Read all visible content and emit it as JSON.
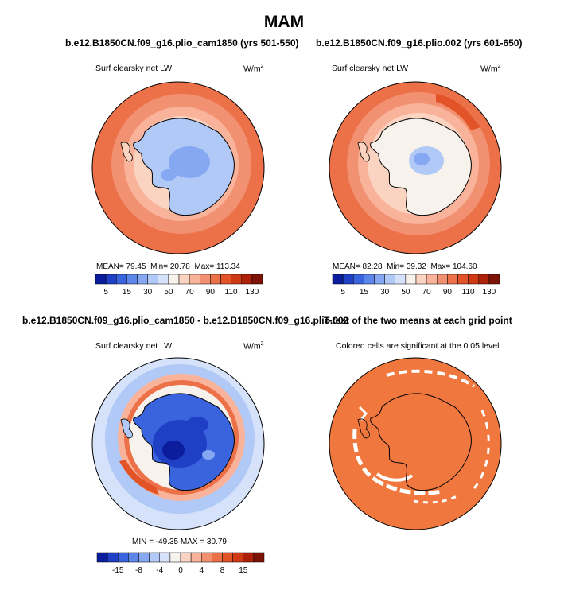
{
  "title": "MAM",
  "panels": {
    "p1": {
      "title": "b.e12.B1850CN.f09_g16.plio_cam1850 (yrs 501-550)",
      "left": "Surf clearsky net LW",
      "units_base": "W/m",
      "units_sup": "2",
      "stats": {
        "mean_label": "MEAN=",
        "mean": "79.45",
        "min_label": "Min=",
        "min": "20.78",
        "max_label": "Max=",
        "max": "113.34"
      }
    },
    "p2": {
      "title": "b.e12.B1850CN.f09_g16.plio.002 (yrs 601-650)",
      "left": "Surf clearsky net LW",
      "units_base": "W/m",
      "units_sup": "2",
      "stats": {
        "mean_label": "MEAN=",
        "mean": "82.28",
        "min_label": "Min=",
        "min": "39.32",
        "max_label": "Max=",
        "max": "104.60"
      }
    },
    "p3": {
      "title": "b.e12.B1850CN.f09_g16.plio_cam1850 - b.e12.B1850CN.f09_g16.plio.002",
      "left": "Surf clearsky net LW",
      "units_base": "W/m",
      "units_sup": "2",
      "stats": "MIN = -49.35  MAX =  30.79"
    },
    "p4": {
      "title": "T-test of the two means at each grid point",
      "left": "Colored cells are significant at the 0.05 level"
    }
  },
  "colorbars": {
    "abs": {
      "colors": [
        "#0b1d9c",
        "#1f3fc4",
        "#3a64dd",
        "#5c86ea",
        "#86a8f2",
        "#b0c9f7",
        "#d5e2fa",
        "#f8f2ec",
        "#fbd3c1",
        "#f8b39a",
        "#f29172",
        "#ec7048",
        "#e35328",
        "#cf3a15",
        "#ac2108",
        "#7d1206"
      ],
      "labels": [
        "5",
        "15",
        "30",
        "50",
        "70",
        "90",
        "110",
        "130"
      ]
    },
    "diff": {
      "colors": [
        "#0b1d9c",
        "#1f3fc4",
        "#3a64dd",
        "#5c86ea",
        "#86a8f2",
        "#b0c9f7",
        "#d5e2fa",
        "#f8f2ec",
        "#fbd3c1",
        "#f8b39a",
        "#f29172",
        "#ec7048",
        "#e35328",
        "#cf3a15",
        "#ac2108",
        "#7d1206"
      ],
      "labels": [
        "-15",
        "-8",
        "-4",
        "0",
        "4",
        "8",
        "15"
      ]
    }
  },
  "colors": {
    "ocean_warm": "#ec7048",
    "ocean_pale": "#f8b39a",
    "ttest_fill": "#f0773e",
    "land_blue": "#b0c9f7",
    "land_deep": "#1f3fc4"
  }
}
